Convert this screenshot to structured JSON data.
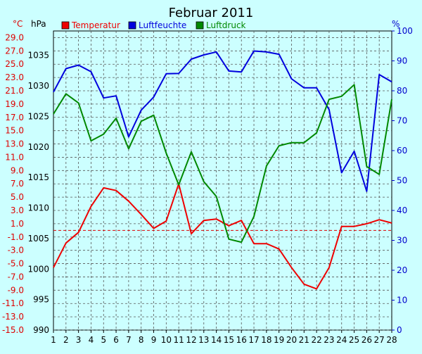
{
  "chart_data": {
    "type": "line",
    "title": "Februar 2011",
    "x": [
      1,
      2,
      3,
      4,
      5,
      6,
      7,
      8,
      9,
      10,
      11,
      12,
      13,
      14,
      15,
      16,
      17,
      18,
      19,
      20,
      21,
      22,
      23,
      24,
      25,
      26,
      27,
      28
    ],
    "axes": {
      "left_temperature": {
        "unit": "°C",
        "range": [
          -15.0,
          30.0
        ],
        "ticks": [
          "29.0",
          "27.0",
          "25.0",
          "23.0",
          "21.0",
          "19.0",
          "17.0",
          "15.0",
          "13.0",
          "11.0",
          "9.0",
          "7.0",
          "5.0",
          "3.0",
          "1.0",
          "-1.0",
          "-3.0",
          "-5.0",
          "-7.0",
          "-9.0",
          "-11.0",
          "-13.0",
          "-15.0"
        ]
      },
      "left_pressure": {
        "unit": "hPa",
        "range": [
          990,
          1039
        ],
        "ticks": [
          "1035",
          "1030",
          "1025",
          "1020",
          "1015",
          "1010",
          "1005",
          "1000",
          "995",
          "990"
        ]
      },
      "right_humidity": {
        "unit": "%",
        "range": [
          0,
          100
        ],
        "ticks": [
          "100",
          "90",
          "80",
          "70",
          "60",
          "50",
          "40",
          "30",
          "20",
          "10",
          "0"
        ]
      }
    },
    "grid": true,
    "zero_line": 0,
    "series": [
      {
        "name": "Temperatur",
        "color": "#ee0000",
        "axis": "left_temperature",
        "values": [
          -5.6,
          -1.9,
          -0.3,
          3.6,
          6.4,
          6.0,
          4.4,
          2.4,
          0.3,
          1.4,
          7.0,
          -0.5,
          1.5,
          1.7,
          0.7,
          1.5,
          -2.0,
          -2.0,
          -2.8,
          -5.6,
          -8.1,
          -8.8,
          -5.6,
          0.6,
          0.6,
          1.0,
          1.6,
          1.1
        ]
      },
      {
        "name": "Luftfeuchte",
        "color": "#0000dd",
        "axis": "right_humidity",
        "values": [
          79.6,
          87.4,
          88.6,
          86.4,
          77.6,
          78.3,
          64.6,
          73.5,
          77.9,
          85.7,
          85.8,
          90.6,
          92.0,
          93.0,
          86.6,
          86.3,
          93.3,
          93.0,
          92.2,
          84.0,
          81.0,
          81.0,
          73.7,
          52.6,
          59.8,
          46.4,
          85.4,
          83.0
        ]
      },
      {
        "name": "Luftdruck",
        "color": "#008800",
        "axis": "left_pressure",
        "values": [
          1025.4,
          1028.7,
          1027.2,
          1021.0,
          1022.1,
          1024.7,
          1019.7,
          1024.2,
          1025.2,
          1019.0,
          1013.8,
          1019.2,
          1014.3,
          1011.9,
          1004.9,
          1004.4,
          1008.6,
          1016.9,
          1020.2,
          1020.7,
          1020.7,
          1022.3,
          1027.8,
          1028.3,
          1030.2,
          1016.8,
          1015.5,
          1027.8
        ]
      }
    ]
  }
}
